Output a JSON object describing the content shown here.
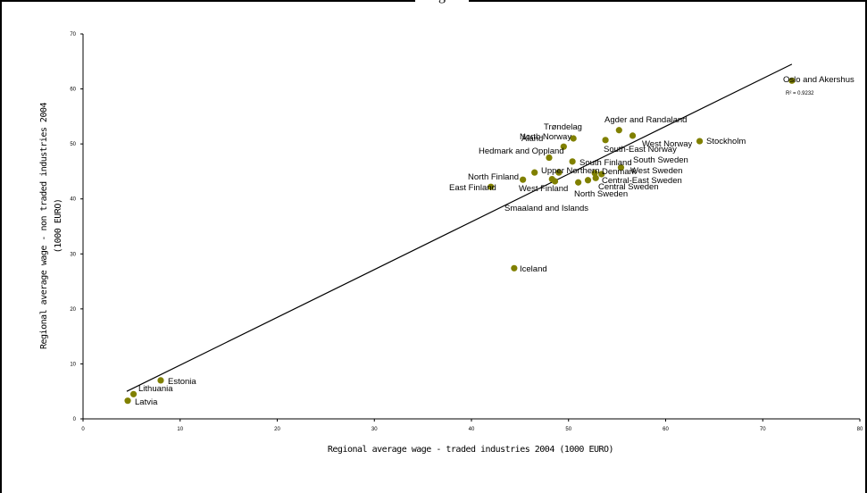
{
  "chart_data": {
    "type": "scatter",
    "title": "",
    "xlabel": "Regional average wage - traded industries 2004 (1000 EURO)",
    "ylabel": "Regional average wage - non traded industries 2004",
    "ylabel_unit": "(1000 EURO)",
    "xlim": [
      0,
      80
    ],
    "ylim": [
      0,
      70
    ],
    "x_ticks": [
      "0",
      "10",
      "20",
      "30",
      "40",
      "50",
      "60",
      "70",
      "80"
    ],
    "y_ticks": [
      "0",
      "10",
      "20",
      "30",
      "40",
      "50",
      "60",
      "70"
    ],
    "grid": false,
    "legend": "none",
    "marker_color": "#808000",
    "trendline": {
      "x": [
        4.5,
        73
      ],
      "y": [
        5.0,
        64.5
      ],
      "r2_label": "R² = 0.9232"
    },
    "points": [
      {
        "name": "Oslo and Akershus",
        "x": 73.0,
        "y": 61.5
      },
      {
        "name": "Stockholm",
        "x": 63.5,
        "y": 50.5
      },
      {
        "name": "Agder and Randaland",
        "x": 55.2,
        "y": 52.5
      },
      {
        "name": "West Norway",
        "x": 56.6,
        "y": 51.5
      },
      {
        "name": "South-East Norway",
        "x": 53.8,
        "y": 50.7
      },
      {
        "name": "Trøndelag",
        "x": 50.5,
        "y": 51.0
      },
      {
        "name": "North Norway",
        "x": 49.5,
        "y": 49.5
      },
      {
        "name": "Hedmark and Oppland",
        "x": 48.0,
        "y": 47.5
      },
      {
        "name": "South Finland",
        "x": 50.4,
        "y": 46.8
      },
      {
        "name": "South Sweden",
        "x": 55.4,
        "y": 45.7
      },
      {
        "name": "Åland",
        "x": 46.5,
        "y": 44.8
      },
      {
        "name": "Upper Northern",
        "x": 49.0,
        "y": 44.8
      },
      {
        "name": "Denmark",
        "x": 52.7,
        "y": 44.7
      },
      {
        "name": "West Sweden",
        "x": 53.4,
        "y": 44.5
      },
      {
        "name": "Central-East Sweden",
        "x": 52.8,
        "y": 43.8
      },
      {
        "name": "Central Sweden",
        "x": 52.0,
        "y": 43.4
      },
      {
        "name": "North Sweden",
        "x": 51.0,
        "y": 43.0
      },
      {
        "name": "North Finland",
        "x": 45.3,
        "y": 43.5
      },
      {
        "name": "West Finland",
        "x": 48.3,
        "y": 43.6
      },
      {
        "name": "East Finland",
        "x": 42.0,
        "y": 42.2
      },
      {
        "name": "Smaaland and Islands",
        "x": 48.6,
        "y": 43.2
      },
      {
        "name": "Iceland",
        "x": 44.4,
        "y": 27.4
      },
      {
        "name": "Estonia",
        "x": 8.0,
        "y": 7.0
      },
      {
        "name": "Lithuania",
        "x": 5.2,
        "y": 4.5
      },
      {
        "name": "Latvia",
        "x": 4.6,
        "y": 3.3
      }
    ]
  }
}
